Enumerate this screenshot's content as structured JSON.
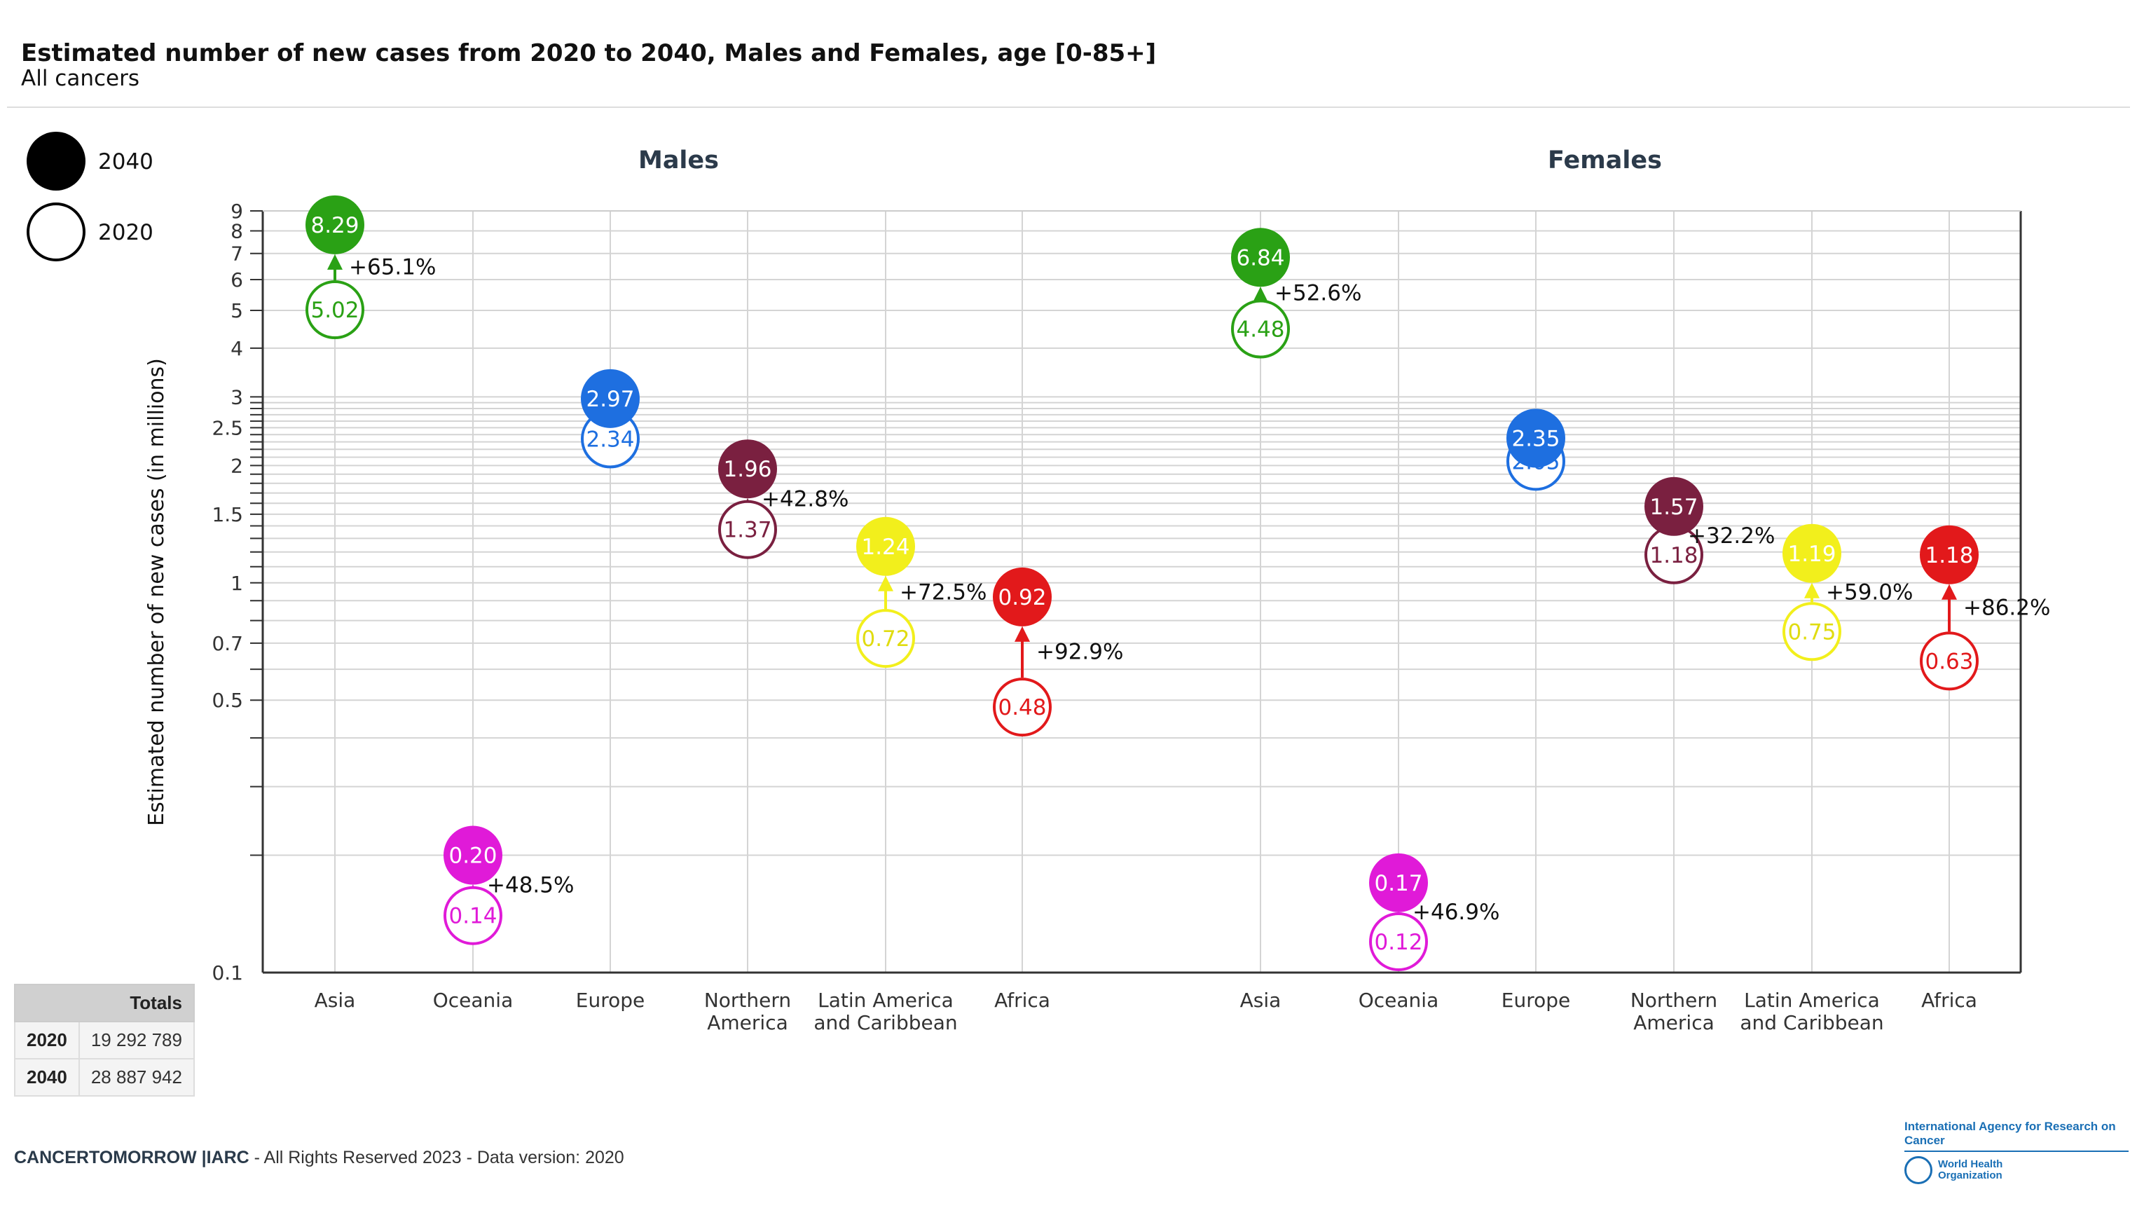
{
  "header": {
    "title": "Estimated number of new cases from 2020 to 2040, Males and Females, age [0-85+]",
    "subtitle": "All cancers"
  },
  "legend": {
    "filled": "2040",
    "outline": "2020"
  },
  "totals": {
    "header": "Totals",
    "rows": [
      {
        "year": "2020",
        "value": "19 292 789"
      },
      {
        "year": "2040",
        "value": "28 887 942"
      }
    ]
  },
  "footer": {
    "brand": "CANCERTOMORROW |IARC",
    "text": " - All Rights Reserved 2023 - Data version: 2020"
  },
  "logo": {
    "line1": "International Agency for Research on Cancer",
    "line2": "World Health Organization"
  },
  "chart_data": {
    "type": "dumbbell",
    "ylabel": "Estimated number of new cases (in millions)",
    "yscale": "log",
    "ylim": [
      0.1,
      9
    ],
    "yticks": [
      "0.1",
      "0.5",
      "0.7",
      "1",
      "1.5",
      "2",
      "2.5",
      "3",
      "4",
      "5",
      "6",
      "7",
      "8",
      "9"
    ],
    "grid": true,
    "legend_position": "top-left",
    "colors": {
      "Asia": "#2aa115",
      "Oceania": "#e01ad8",
      "Europe": "#1e6fe0",
      "Northern America": "#7a2040",
      "Latin America and Caribbean": "#f2ef1c",
      "Africa": "#e2191b"
    },
    "panels": [
      {
        "name": "Males",
        "categories": [
          "Asia",
          "Oceania",
          "Europe",
          "Northern America",
          "Latin America and Caribbean",
          "Africa"
        ],
        "v2020": [
          5.02,
          0.14,
          2.34,
          1.37,
          0.72,
          0.48
        ],
        "v2040": [
          8.29,
          0.2,
          2.97,
          1.96,
          1.24,
          0.92
        ],
        "change": [
          "+65.1%",
          "+48.5%",
          "",
          "+42.8%",
          "+72.5%",
          "+92.9%"
        ]
      },
      {
        "name": "Females",
        "categories": [
          "Asia",
          "Oceania",
          "Europe",
          "Northern America",
          "Latin America and Caribbean",
          "Africa"
        ],
        "v2020": [
          4.48,
          0.12,
          2.05,
          1.18,
          0.75,
          0.63
        ],
        "v2040": [
          6.84,
          0.17,
          2.35,
          1.57,
          1.19,
          1.18
        ],
        "change": [
          "+52.6%",
          "+46.9%",
          "",
          "+32.2%",
          "+59.0%",
          "+86.2%"
        ]
      }
    ],
    "category_labels": [
      "Asia",
      "Oceania",
      "Europe",
      "Northern\nAmerica",
      "Latin America\nand Caribbean",
      "Africa"
    ]
  }
}
